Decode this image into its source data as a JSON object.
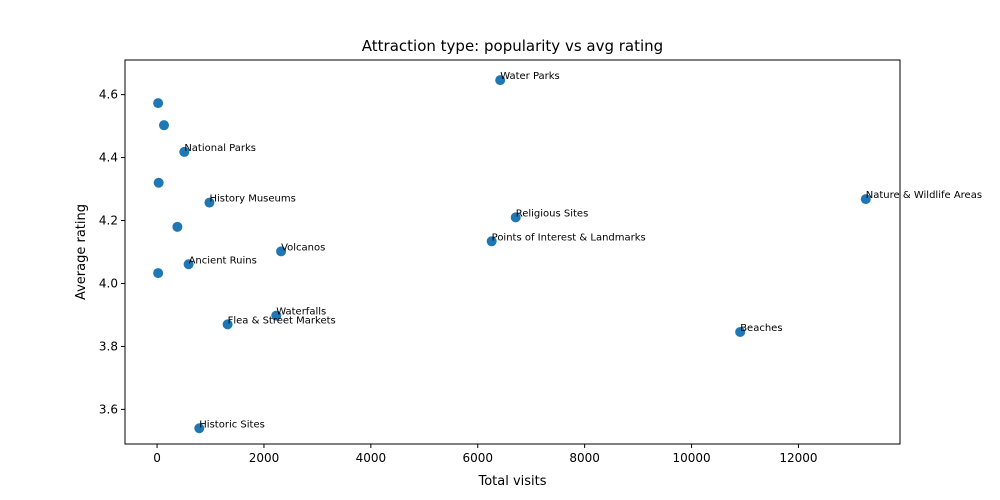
{
  "chart_data": {
    "type": "scatter",
    "title": "Attraction type: popularity vs avg rating",
    "xlabel": "Total visits",
    "ylabel": "Average rating",
    "xlim": [
      -600,
      13900
    ],
    "ylim": [
      3.49,
      4.71
    ],
    "xticks": [
      0,
      2000,
      4000,
      6000,
      8000,
      10000,
      12000
    ],
    "yticks": [
      3.6,
      3.8,
      4.0,
      4.2,
      4.4,
      4.6
    ],
    "ytick_labels": [
      "3.6",
      "3.8",
      "4.0",
      "4.2",
      "4.4",
      "4.6"
    ],
    "grid": false,
    "marker_color": "#1f77b4",
    "points": [
      {
        "x": 20,
        "y": 4.573,
        "label": ""
      },
      {
        "x": 130,
        "y": 4.503,
        "label": ""
      },
      {
        "x": 510,
        "y": 4.418,
        "label": "National Parks"
      },
      {
        "x": 30,
        "y": 4.32,
        "label": ""
      },
      {
        "x": 980,
        "y": 4.257,
        "label": "History Museums"
      },
      {
        "x": 380,
        "y": 4.18,
        "label": ""
      },
      {
        "x": 590,
        "y": 4.061,
        "label": "Ancient Ruins"
      },
      {
        "x": 20,
        "y": 4.033,
        "label": ""
      },
      {
        "x": 2320,
        "y": 4.102,
        "label": "Volcanos"
      },
      {
        "x": 2230,
        "y": 3.898,
        "label": "Waterfalls"
      },
      {
        "x": 1320,
        "y": 3.87,
        "label": "Flea & Street Markets"
      },
      {
        "x": 790,
        "y": 3.54,
        "label": "Historic Sites"
      },
      {
        "x": 6420,
        "y": 4.646,
        "label": "Water Parks"
      },
      {
        "x": 6710,
        "y": 4.21,
        "label": "Religious Sites"
      },
      {
        "x": 6260,
        "y": 4.134,
        "label": "Points of Interest & Landmarks"
      },
      {
        "x": 10910,
        "y": 3.846,
        "label": "Beaches"
      },
      {
        "x": 13260,
        "y": 4.268,
        "label": "Nature & Wildlife Areas"
      }
    ]
  }
}
